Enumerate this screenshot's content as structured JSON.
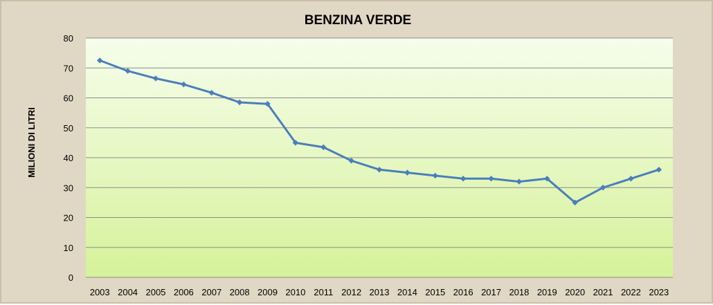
{
  "chart_data": {
    "type": "line",
    "title": "BENZINA VERDE",
    "xlabel": "",
    "ylabel": "MILIONI DI LITRI",
    "ylim": [
      0,
      80
    ],
    "yticks": [
      0,
      10,
      20,
      30,
      40,
      50,
      60,
      70,
      80
    ],
    "grid": true,
    "legend": "none",
    "categories": [
      "2003",
      "2004",
      "2005",
      "2006",
      "2007",
      "2008",
      "2009",
      "2010",
      "2011",
      "2012",
      "2013",
      "2014",
      "2015",
      "2016",
      "2017",
      "2018",
      "2019",
      "2020",
      "2021",
      "2022",
      "2023"
    ],
    "series": [
      {
        "values": [
          72.5,
          69,
          66.5,
          64.5,
          61.7,
          58.5,
          58,
          45,
          43.5,
          39,
          36,
          35,
          34,
          33,
          33,
          32,
          33,
          25,
          30,
          33,
          36
        ],
        "color": "#4a7ebb"
      }
    ],
    "colors": {
      "frame_background": "#e0d8c4",
      "plot_top": "#f6fdec",
      "plot_bottom": "#d6f29a",
      "gridline": "#8c8c8c"
    }
  }
}
